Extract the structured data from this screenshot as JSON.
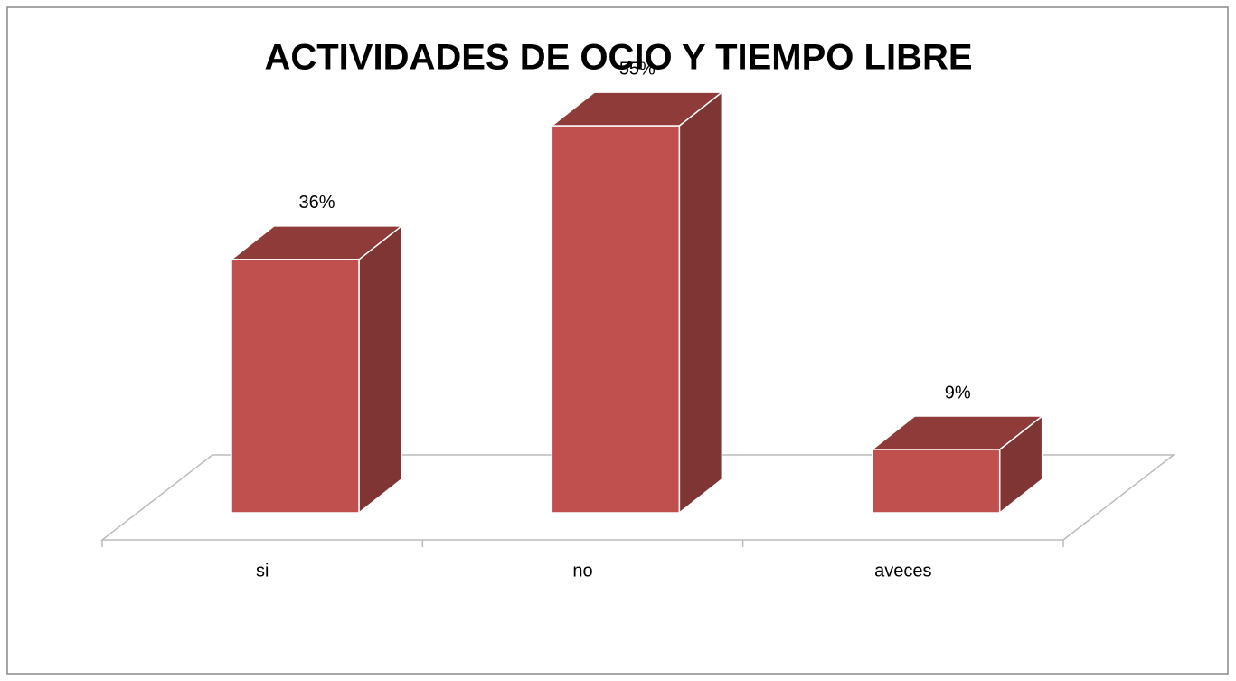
{
  "chart_data": {
    "type": "bar",
    "title": "ACTIVIDADES DE OCIO Y TIEMPO LIBRE",
    "categories": [
      "si",
      "no",
      "aveces"
    ],
    "values": [
      36,
      55,
      9
    ],
    "value_labels": [
      "36%",
      "55%",
      "9%"
    ],
    "color": "#c0504d"
  }
}
